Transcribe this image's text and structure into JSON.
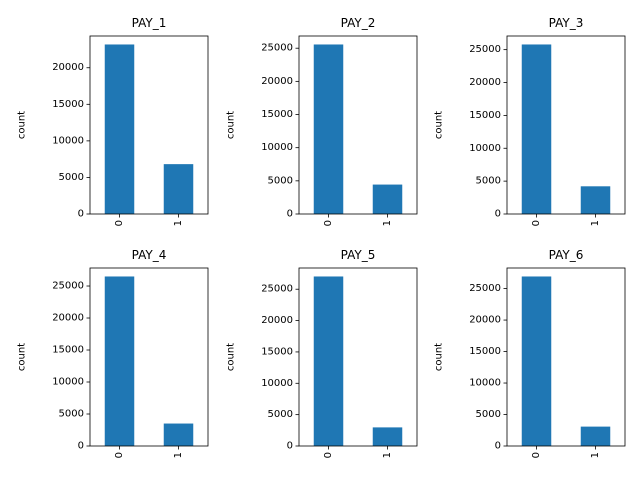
{
  "chart_data": [
    {
      "type": "bar",
      "title": "PAY_1",
      "ylabel": "count",
      "categories": [
        "0",
        "1"
      ],
      "values": [
        23182,
        6818
      ],
      "ylim": [
        0,
        24341
      ],
      "yticks": [
        0,
        5000,
        10000,
        15000,
        20000
      ],
      "color": "#1f77b4"
    },
    {
      "type": "bar",
      "title": "PAY_2",
      "ylabel": "count",
      "categories": [
        "0",
        "1"
      ],
      "values": [
        25562,
        4438
      ],
      "ylim": [
        0,
        26840
      ],
      "yticks": [
        0,
        5000,
        10000,
        15000,
        20000,
        25000
      ],
      "color": "#1f77b4"
    },
    {
      "type": "bar",
      "title": "PAY_3",
      "ylabel": "count",
      "categories": [
        "0",
        "1"
      ],
      "values": [
        25787,
        4213
      ],
      "ylim": [
        0,
        27076
      ],
      "yticks": [
        0,
        5000,
        10000,
        15000,
        20000,
        25000
      ],
      "color": "#1f77b4"
    },
    {
      "type": "bar",
      "title": "PAY_4",
      "ylabel": "count",
      "categories": [
        "0",
        "1"
      ],
      "values": [
        26490,
        3510
      ],
      "ylim": [
        0,
        27815
      ],
      "yticks": [
        0,
        5000,
        10000,
        15000,
        20000,
        25000
      ],
      "color": "#1f77b4"
    },
    {
      "type": "bar",
      "title": "PAY_5",
      "ylabel": "count",
      "categories": [
        "0",
        "1"
      ],
      "values": [
        27032,
        2968
      ],
      "ylim": [
        0,
        28384
      ],
      "yticks": [
        0,
        5000,
        10000,
        15000,
        20000,
        25000
      ],
      "color": "#1f77b4"
    },
    {
      "type": "bar",
      "title": "PAY_6",
      "ylabel": "count",
      "categories": [
        "0",
        "1"
      ],
      "values": [
        26921,
        3079
      ],
      "ylim": [
        0,
        28267
      ],
      "yticks": [
        0,
        5000,
        10000,
        15000,
        20000,
        25000
      ],
      "color": "#1f77b4"
    }
  ]
}
